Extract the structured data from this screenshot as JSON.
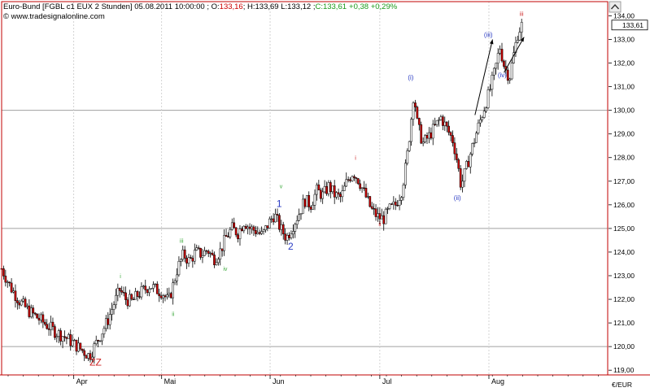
{
  "header": {
    "title_prefix": "Euro-Bund [FGBL c1 EUX  2 Stunden] 05.08.2011 10:00:00 ; O:",
    "open": "133,16",
    "hl": "; H:133,69 L:133,12 ;",
    "close": "C:133,61",
    "change": "+0,38 +0,29%",
    "copyright": "© www.tradesignalonline.com"
  },
  "colors": {
    "up": "#ffffff",
    "down": "#cc0000",
    "wick": "#000000",
    "grid": "#a0a0a0",
    "vgrid": "#c8c8c8",
    "wave_blue": "#2b3cc4",
    "wave_green": "#3aa83a",
    "wave_red": "#cc2222",
    "open_color": "#cc0000",
    "change_color": "#1a9a1a"
  },
  "chart_data": {
    "type": "candlestick",
    "unit_label": "€/EUR",
    "last_price_label": "133,61",
    "ylim": [
      118.8,
      134.6
    ],
    "y_ticks": [
      119,
      120,
      121,
      122,
      123,
      124,
      125,
      126,
      127,
      128,
      129,
      130,
      131,
      132,
      133,
      134
    ],
    "y_tick_labels": [
      "119,00",
      "120,00",
      "121,00",
      "122,00",
      "123,00",
      "124,00",
      "125,00",
      "126,00",
      "127,00",
      "128,00",
      "129,00",
      "130,00",
      "131,00",
      "132,00",
      "133,00",
      "134,00"
    ],
    "horizontal_lines": [
      120,
      125,
      130
    ],
    "x_months": [
      {
        "label": "Apr",
        "t": 0.119
      },
      {
        "label": "Mai",
        "t": 0.264
      },
      {
        "label": "Jun",
        "t": 0.443
      },
      {
        "label": "Jul",
        "t": 0.624
      },
      {
        "label": "Aug",
        "t": 0.804
      }
    ],
    "path": [
      [
        0.0,
        123.3
      ],
      [
        0.015,
        122.5
      ],
      [
        0.03,
        121.9
      ],
      [
        0.045,
        121.5
      ],
      [
        0.06,
        121.2
      ],
      [
        0.075,
        120.9
      ],
      [
        0.09,
        120.6
      ],
      [
        0.105,
        120.4
      ],
      [
        0.12,
        120.1
      ],
      [
        0.135,
        119.8
      ],
      [
        0.145,
        119.6
      ],
      [
        0.155,
        120.1
      ],
      [
        0.165,
        120.6
      ],
      [
        0.175,
        121.1
      ],
      [
        0.185,
        121.8
      ],
      [
        0.195,
        122.4
      ],
      [
        0.205,
        122.0
      ],
      [
        0.215,
        121.9
      ],
      [
        0.225,
        122.2
      ],
      [
        0.235,
        122.4
      ],
      [
        0.245,
        122.6
      ],
      [
        0.255,
        122.4
      ],
      [
        0.265,
        122.3
      ],
      [
        0.275,
        121.9
      ],
      [
        0.283,
        122.6
      ],
      [
        0.29,
        123.3
      ],
      [
        0.3,
        123.9
      ],
      [
        0.31,
        123.6
      ],
      [
        0.32,
        124.0
      ],
      [
        0.33,
        123.9
      ],
      [
        0.34,
        124.1
      ],
      [
        0.35,
        123.7
      ],
      [
        0.36,
        124.0
      ],
      [
        0.37,
        124.6
      ],
      [
        0.38,
        125.0
      ],
      [
        0.39,
        124.8
      ],
      [
        0.4,
        125.3
      ],
      [
        0.41,
        125.0
      ],
      [
        0.42,
        124.9
      ],
      [
        0.43,
        124.7
      ],
      [
        0.44,
        125.2
      ],
      [
        0.45,
        125.6
      ],
      [
        0.46,
        125.0
      ],
      [
        0.47,
        124.6
      ],
      [
        0.48,
        125.1
      ],
      [
        0.49,
        125.6
      ],
      [
        0.5,
        126.2
      ],
      [
        0.51,
        126.0
      ],
      [
        0.52,
        126.6
      ],
      [
        0.53,
        126.4
      ],
      [
        0.54,
        126.8
      ],
      [
        0.55,
        126.4
      ],
      [
        0.56,
        126.3
      ],
      [
        0.57,
        127.0
      ],
      [
        0.58,
        127.4
      ],
      [
        0.59,
        127.0
      ],
      [
        0.6,
        126.4
      ],
      [
        0.61,
        125.8
      ],
      [
        0.62,
        125.5
      ],
      [
        0.63,
        125.4
      ],
      [
        0.64,
        125.8
      ],
      [
        0.65,
        126.0
      ],
      [
        0.66,
        126.6
      ],
      [
        0.668,
        127.8
      ],
      [
        0.675,
        129.4
      ],
      [
        0.68,
        130.8
      ],
      [
        0.686,
        129.4
      ],
      [
        0.695,
        128.6
      ],
      [
        0.705,
        128.9
      ],
      [
        0.715,
        129.3
      ],
      [
        0.725,
        129.7
      ],
      [
        0.735,
        129.2
      ],
      [
        0.745,
        128.7
      ],
      [
        0.752,
        127.8
      ],
      [
        0.758,
        126.8
      ],
      [
        0.765,
        127.4
      ],
      [
        0.775,
        128.3
      ],
      [
        0.785,
        129.2
      ],
      [
        0.795,
        130.0
      ],
      [
        0.805,
        130.8
      ],
      [
        0.815,
        131.8
      ],
      [
        0.822,
        132.7
      ],
      [
        0.83,
        131.8
      ],
      [
        0.838,
        131.4
      ],
      [
        0.846,
        132.5
      ],
      [
        0.852,
        133.3
      ],
      [
        0.858,
        133.6
      ]
    ],
    "annotations": [
      {
        "text": "ZZ",
        "t": 0.155,
        "y": 119.2,
        "color": "red",
        "size": 12
      },
      {
        "text": "i",
        "t": 0.196,
        "y": 122.9,
        "color": "green",
        "size": 7
      },
      {
        "text": "ii",
        "t": 0.283,
        "y": 121.3,
        "color": "green",
        "size": 7
      },
      {
        "text": "iii",
        "t": 0.297,
        "y": 124.4,
        "color": "green",
        "size": 7
      },
      {
        "text": "iv",
        "t": 0.369,
        "y": 123.2,
        "color": "green",
        "size": 7
      },
      {
        "text": "v",
        "t": 0.461,
        "y": 126.7,
        "color": "green",
        "size": 7
      },
      {
        "text": "1",
        "t": 0.458,
        "y": 125.9,
        "color": "blue",
        "size": 12
      },
      {
        "text": "2",
        "t": 0.477,
        "y": 124.1,
        "color": "blue",
        "size": 12
      },
      {
        "text": "i",
        "t": 0.584,
        "y": 127.9,
        "color": "red",
        "size": 7
      },
      {
        "text": "ii",
        "t": 0.624,
        "y": 125.1,
        "color": "red",
        "size": 7
      },
      {
        "text": "(i)",
        "t": 0.675,
        "y": 131.3,
        "color": "blue",
        "size": 8
      },
      {
        "text": "(ii)",
        "t": 0.752,
        "y": 126.2,
        "color": "blue",
        "size": 8
      },
      {
        "text": "(iii)",
        "t": 0.803,
        "y": 133.1,
        "color": "blue",
        "size": 8
      },
      {
        "text": "(iv)",
        "t": 0.826,
        "y": 131.4,
        "color": "blue",
        "size": 8
      },
      {
        "text": "iii",
        "t": 0.858,
        "y": 134.0,
        "color": "red",
        "size": 7
      }
    ],
    "arrows": [
      {
        "t1": 0.781,
        "y1": 129.8,
        "t2": 0.81,
        "y2": 133.0
      },
      {
        "t1": 0.829,
        "y1": 131.6,
        "t2": 0.862,
        "y2": 133.1
      }
    ]
  }
}
